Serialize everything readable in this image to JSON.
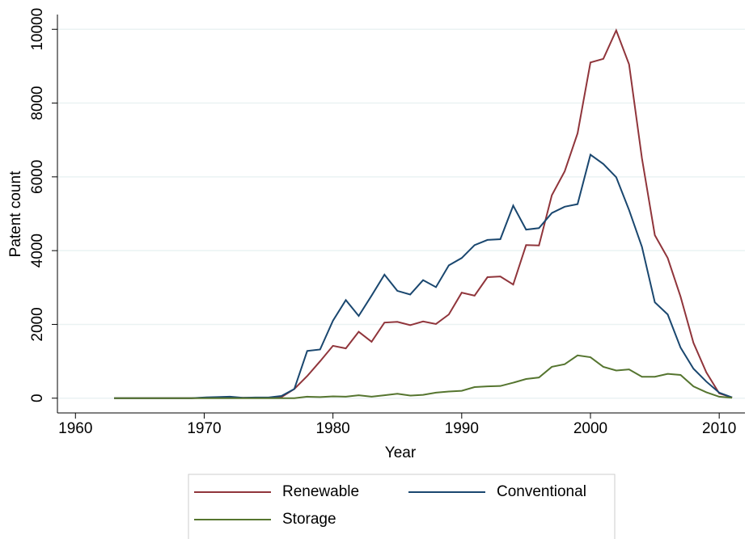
{
  "chart_data": {
    "type": "line",
    "x_label": "Year",
    "y_label": "Patent count",
    "x": [
      1963,
      1964,
      1965,
      1966,
      1967,
      1968,
      1969,
      1970,
      1971,
      1972,
      1973,
      1974,
      1975,
      1976,
      1977,
      1978,
      1979,
      1980,
      1981,
      1982,
      1983,
      1984,
      1985,
      1986,
      1987,
      1988,
      1989,
      1990,
      1991,
      1992,
      1993,
      1994,
      1995,
      1996,
      1997,
      1998,
      1999,
      2000,
      2001,
      2002,
      2003,
      2004,
      2005,
      2006,
      2007,
      2008,
      2009,
      2010,
      2011
    ],
    "series": [
      {
        "name": "Renewable",
        "color": "#90353b",
        "values": [
          0,
          0,
          0,
          0,
          0,
          0,
          0,
          10,
          10,
          10,
          10,
          10,
          10,
          30,
          250,
          600,
          1000,
          1420,
          1350,
          1800,
          1530,
          2050,
          2070,
          1980,
          2080,
          2010,
          2270,
          2860,
          2780,
          3280,
          3300,
          3080,
          4150,
          4140,
          5500,
          6150,
          7180,
          9100,
          9200,
          9970,
          9050,
          6500,
          4420,
          3800,
          2750,
          1500,
          700,
          130,
          20
        ]
      },
      {
        "name": "Conventional",
        "color": "#1a476f",
        "values": [
          0,
          0,
          0,
          0,
          0,
          0,
          0,
          20,
          30,
          40,
          10,
          20,
          20,
          60,
          250,
          1280,
          1320,
          2100,
          2660,
          2230,
          2780,
          3350,
          2910,
          2810,
          3200,
          3010,
          3600,
          3800,
          4150,
          4290,
          4310,
          5220,
          4570,
          4610,
          5020,
          5190,
          5260,
          6600,
          6350,
          5990,
          5100,
          4100,
          2600,
          2270,
          1370,
          800,
          450,
          150,
          20
        ]
      },
      {
        "name": "Storage",
        "color": "#55752f",
        "values": [
          0,
          0,
          0,
          0,
          0,
          0,
          0,
          0,
          0,
          0,
          0,
          0,
          0,
          0,
          0,
          40,
          30,
          50,
          40,
          80,
          40,
          80,
          120,
          70,
          90,
          150,
          180,
          200,
          300,
          320,
          330,
          420,
          520,
          560,
          850,
          920,
          1160,
          1110,
          850,
          750,
          780,
          580,
          580,
          660,
          630,
          320,
          160,
          40,
          10
        ]
      }
    ],
    "xlim": [
      1958.6,
      2012
    ],
    "ylim": [
      -400,
      10400
    ],
    "xticks": [
      1960,
      1970,
      1980,
      1990,
      2000,
      2010
    ],
    "yticks": [
      0,
      2000,
      4000,
      6000,
      8000,
      10000
    ],
    "grid": true
  }
}
